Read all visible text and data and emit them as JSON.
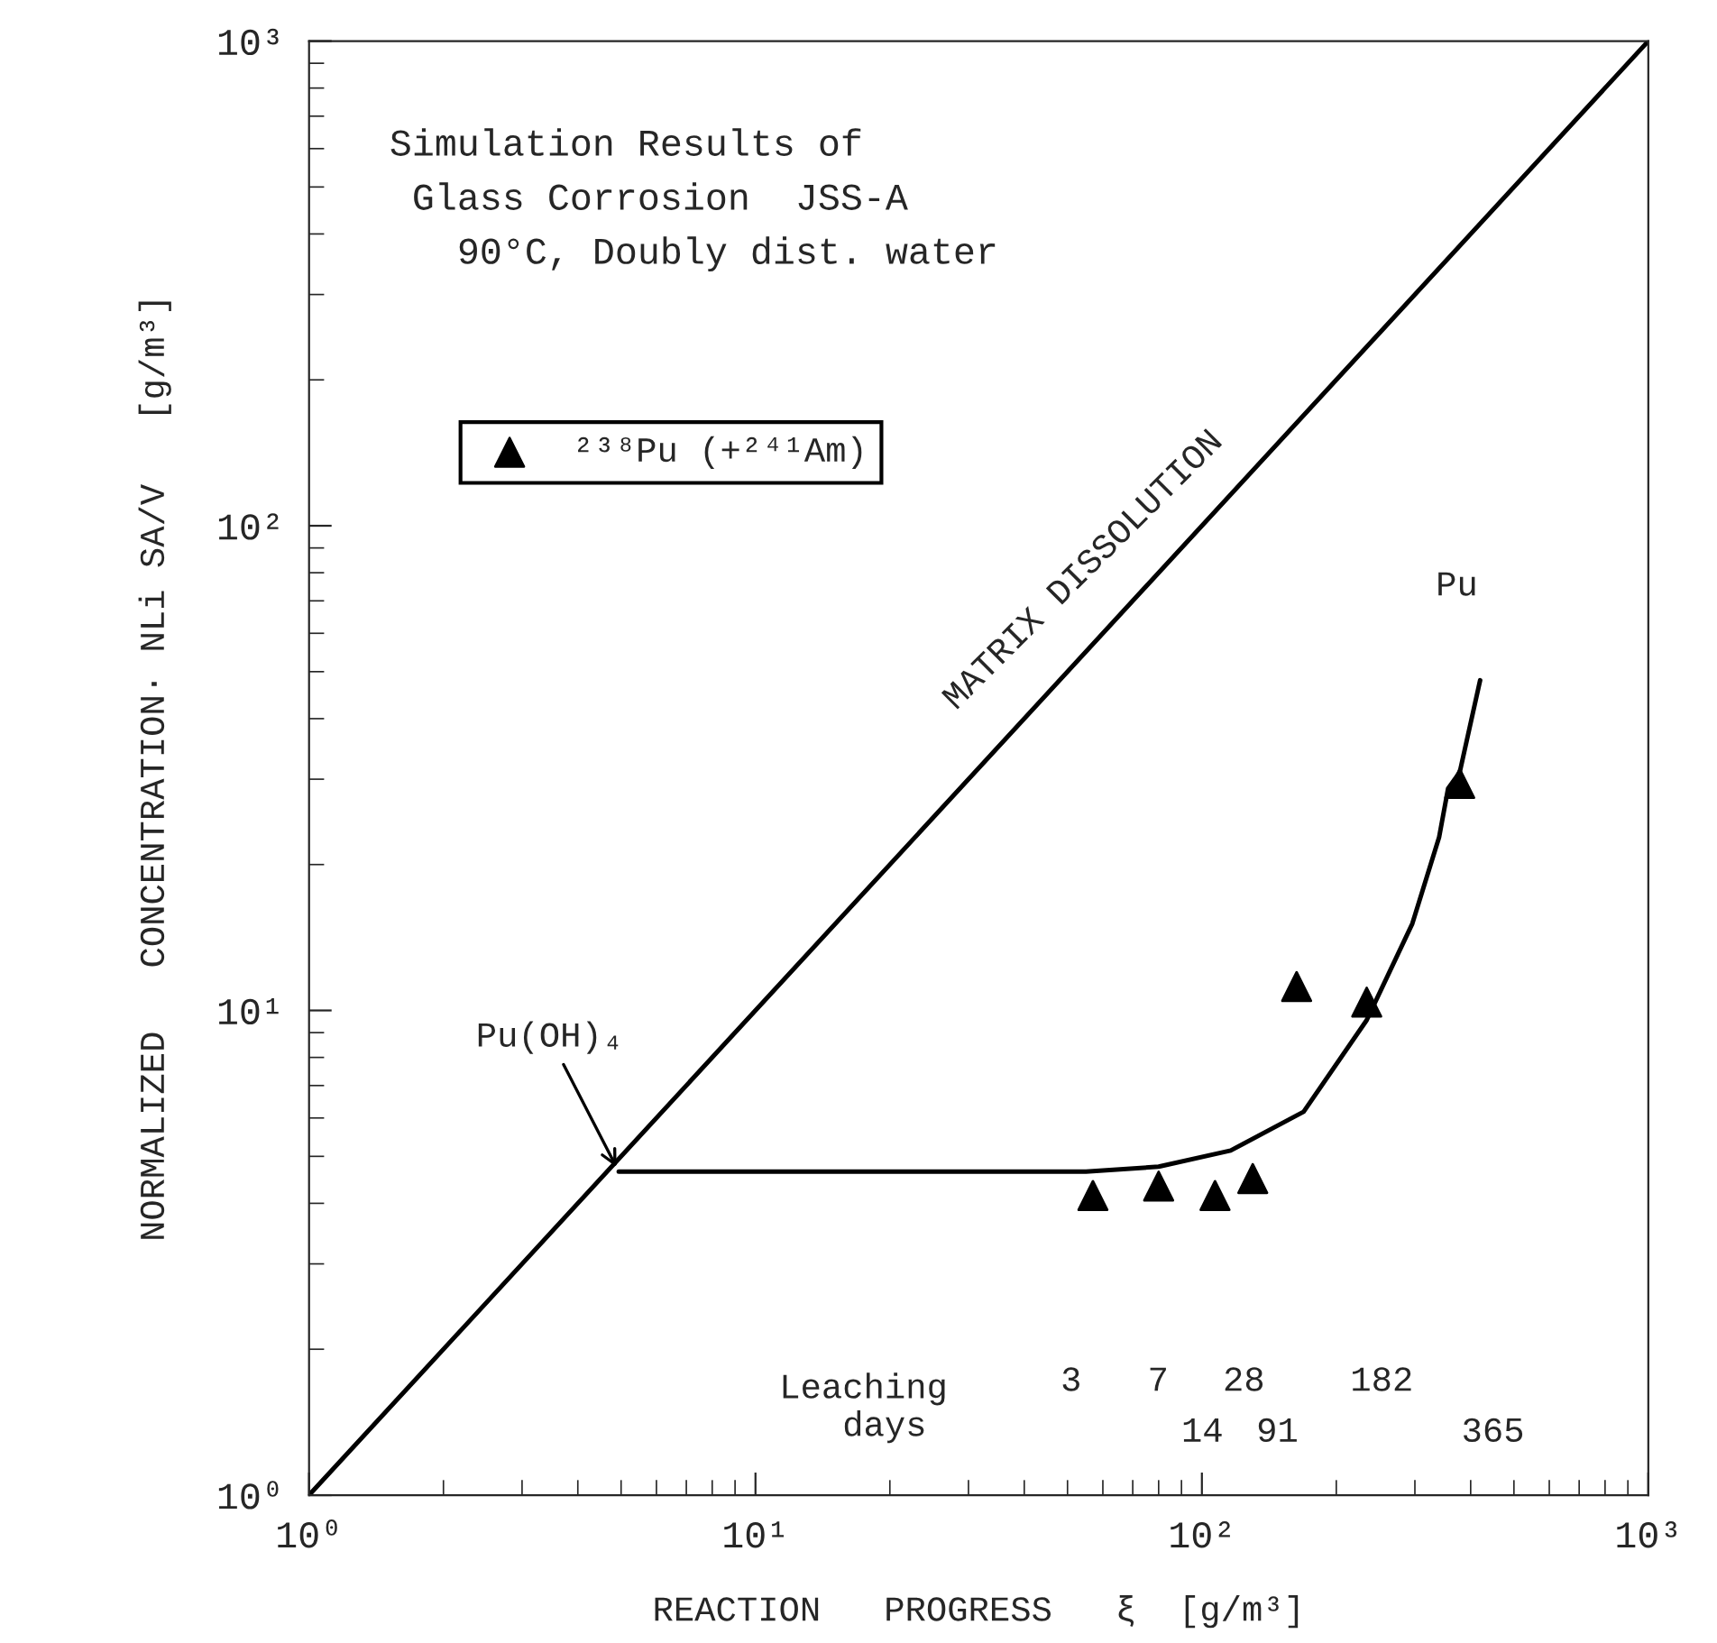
{
  "chart_data": {
    "type": "scatter",
    "title": "Simulation Results of\n Glass Corrosion  JSS-A\n   90°C, Doubly dist. water",
    "xlabel": "REACTION   PROGRESS   ξ  [g/m³]",
    "ylabel": "NORMALIZED   CONCENTRATION· NLi SA/V   [g/m³]",
    "log": "xy",
    "grid": false,
    "legend": "top left",
    "xlim": [
      1,
      1000
    ],
    "ylim": [
      1,
      1000
    ],
    "xticks": [
      {
        "value": 1,
        "label": "10⁰"
      },
      {
        "value": 10,
        "label": "10¹"
      },
      {
        "value": 100,
        "label": "10²"
      },
      {
        "value": 1000,
        "label": "10³"
      }
    ],
    "yticks": [
      {
        "value": 1,
        "label": "10⁰"
      },
      {
        "value": 10,
        "label": "10¹"
      },
      {
        "value": 100,
        "label": "10²"
      },
      {
        "value": 1000,
        "label": "10³"
      }
    ],
    "series": [
      {
        "type": "line",
        "color": "#000000",
        "x": [
          1,
          1000
        ],
        "values": [
          1,
          1000
        ]
      },
      {
        "type": "line",
        "color": "#000000",
        "x": [
          4.94,
          20,
          55,
          80,
          116,
          169,
          234,
          296,
          340,
          356,
          378,
          420
        ],
        "values": [
          4.65,
          4.65,
          4.65,
          4.76,
          5.14,
          6.18,
          9.55,
          15.1,
          22.8,
          28.7,
          31,
          48
        ]
      },
      {
        "name": "²³⁸Pu (+²⁴¹Am)",
        "marker": "triangle",
        "color": "#000000",
        "x": [
          57,
          80,
          107,
          130,
          163,
          234,
          378
        ],
        "values": [
          4.15,
          4.34,
          4.15,
          4.5,
          11.2,
          10.4,
          29.4
        ]
      }
    ],
    "annotations": [
      "MATRIX DISSOLUTION",
      "Pu",
      {
        "text": "Pu(OH)₄",
        "x": 4.94,
        "y": 4.65
      },
      "Leaching\n  days",
      "3",
      "7",
      "28",
      "182",
      "14",
      "91",
      "365"
    ]
  }
}
